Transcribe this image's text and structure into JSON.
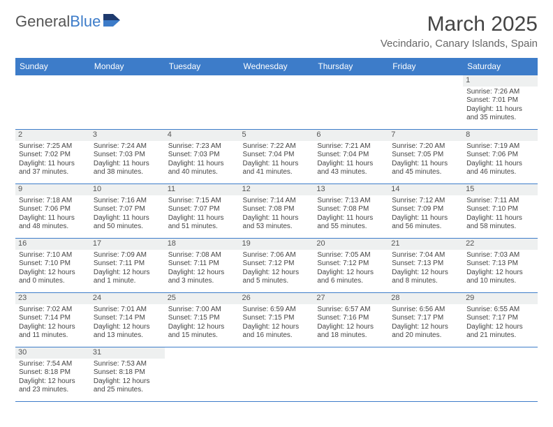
{
  "logo": {
    "text1": "General",
    "text2": "Blue"
  },
  "title": "March 2025",
  "location": "Vecindario, Canary Islands, Spain",
  "colors": {
    "header_bg": "#3d7cc9",
    "header_text": "#ffffff",
    "daynum_bg": "#eef0f0",
    "border": "#3d7cc9",
    "text": "#444444"
  },
  "dayHeaders": [
    "Sunday",
    "Monday",
    "Tuesday",
    "Wednesday",
    "Thursday",
    "Friday",
    "Saturday"
  ],
  "weeks": [
    [
      null,
      null,
      null,
      null,
      null,
      null,
      {
        "n": "1",
        "sr": "7:26 AM",
        "ss": "7:01 PM",
        "dl": "11 hours and 35 minutes."
      }
    ],
    [
      {
        "n": "2",
        "sr": "7:25 AM",
        "ss": "7:02 PM",
        "dl": "11 hours and 37 minutes."
      },
      {
        "n": "3",
        "sr": "7:24 AM",
        "ss": "7:03 PM",
        "dl": "11 hours and 38 minutes."
      },
      {
        "n": "4",
        "sr": "7:23 AM",
        "ss": "7:03 PM",
        "dl": "11 hours and 40 minutes."
      },
      {
        "n": "5",
        "sr": "7:22 AM",
        "ss": "7:04 PM",
        "dl": "11 hours and 41 minutes."
      },
      {
        "n": "6",
        "sr": "7:21 AM",
        "ss": "7:04 PM",
        "dl": "11 hours and 43 minutes."
      },
      {
        "n": "7",
        "sr": "7:20 AM",
        "ss": "7:05 PM",
        "dl": "11 hours and 45 minutes."
      },
      {
        "n": "8",
        "sr": "7:19 AM",
        "ss": "7:06 PM",
        "dl": "11 hours and 46 minutes."
      }
    ],
    [
      {
        "n": "9",
        "sr": "7:18 AM",
        "ss": "7:06 PM",
        "dl": "11 hours and 48 minutes."
      },
      {
        "n": "10",
        "sr": "7:16 AM",
        "ss": "7:07 PM",
        "dl": "11 hours and 50 minutes."
      },
      {
        "n": "11",
        "sr": "7:15 AM",
        "ss": "7:07 PM",
        "dl": "11 hours and 51 minutes."
      },
      {
        "n": "12",
        "sr": "7:14 AM",
        "ss": "7:08 PM",
        "dl": "11 hours and 53 minutes."
      },
      {
        "n": "13",
        "sr": "7:13 AM",
        "ss": "7:08 PM",
        "dl": "11 hours and 55 minutes."
      },
      {
        "n": "14",
        "sr": "7:12 AM",
        "ss": "7:09 PM",
        "dl": "11 hours and 56 minutes."
      },
      {
        "n": "15",
        "sr": "7:11 AM",
        "ss": "7:10 PM",
        "dl": "11 hours and 58 minutes."
      }
    ],
    [
      {
        "n": "16",
        "sr": "7:10 AM",
        "ss": "7:10 PM",
        "dl": "12 hours and 0 minutes."
      },
      {
        "n": "17",
        "sr": "7:09 AM",
        "ss": "7:11 PM",
        "dl": "12 hours and 1 minute."
      },
      {
        "n": "18",
        "sr": "7:08 AM",
        "ss": "7:11 PM",
        "dl": "12 hours and 3 minutes."
      },
      {
        "n": "19",
        "sr": "7:06 AM",
        "ss": "7:12 PM",
        "dl": "12 hours and 5 minutes."
      },
      {
        "n": "20",
        "sr": "7:05 AM",
        "ss": "7:12 PM",
        "dl": "12 hours and 6 minutes."
      },
      {
        "n": "21",
        "sr": "7:04 AM",
        "ss": "7:13 PM",
        "dl": "12 hours and 8 minutes."
      },
      {
        "n": "22",
        "sr": "7:03 AM",
        "ss": "7:13 PM",
        "dl": "12 hours and 10 minutes."
      }
    ],
    [
      {
        "n": "23",
        "sr": "7:02 AM",
        "ss": "7:14 PM",
        "dl": "12 hours and 11 minutes."
      },
      {
        "n": "24",
        "sr": "7:01 AM",
        "ss": "7:14 PM",
        "dl": "12 hours and 13 minutes."
      },
      {
        "n": "25",
        "sr": "7:00 AM",
        "ss": "7:15 PM",
        "dl": "12 hours and 15 minutes."
      },
      {
        "n": "26",
        "sr": "6:59 AM",
        "ss": "7:15 PM",
        "dl": "12 hours and 16 minutes."
      },
      {
        "n": "27",
        "sr": "6:57 AM",
        "ss": "7:16 PM",
        "dl": "12 hours and 18 minutes."
      },
      {
        "n": "28",
        "sr": "6:56 AM",
        "ss": "7:17 PM",
        "dl": "12 hours and 20 minutes."
      },
      {
        "n": "29",
        "sr": "6:55 AM",
        "ss": "7:17 PM",
        "dl": "12 hours and 21 minutes."
      }
    ],
    [
      {
        "n": "30",
        "sr": "7:54 AM",
        "ss": "8:18 PM",
        "dl": "12 hours and 23 minutes."
      },
      {
        "n": "31",
        "sr": "7:53 AM",
        "ss": "8:18 PM",
        "dl": "12 hours and 25 minutes."
      },
      null,
      null,
      null,
      null,
      null
    ]
  ],
  "labels": {
    "sunrise": "Sunrise: ",
    "sunset": "Sunset: ",
    "daylight": "Daylight: "
  }
}
